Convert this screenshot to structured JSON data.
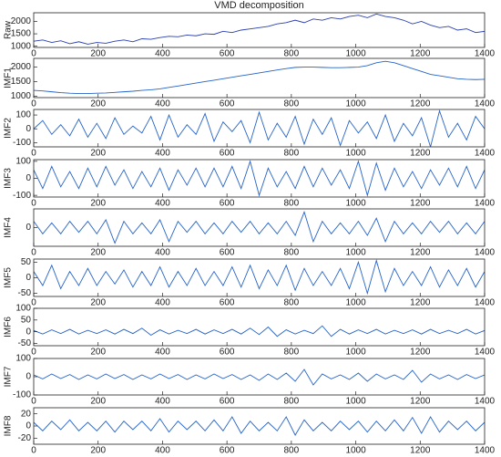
{
  "chart_data": [
    {
      "type": "line",
      "title": "VMD decomposition",
      "ylabel": "Raw",
      "color": "#2a3fb0",
      "x": [
        0,
        28,
        56,
        84,
        112,
        140,
        168,
        196,
        224,
        252,
        280,
        308,
        336,
        364,
        392,
        420,
        448,
        476,
        504,
        532,
        560,
        588,
        616,
        644,
        672,
        700,
        728,
        756,
        784,
        812,
        840,
        868,
        896,
        924,
        952,
        980,
        1008,
        1036,
        1064,
        1092,
        1120,
        1148,
        1176,
        1204,
        1232,
        1260,
        1288,
        1316,
        1344,
        1372,
        1400
      ],
      "values": [
        1200,
        1250,
        1150,
        1220,
        1100,
        1180,
        1080,
        1150,
        1120,
        1200,
        1250,
        1180,
        1300,
        1280,
        1350,
        1400,
        1380,
        1450,
        1420,
        1500,
        1480,
        1600,
        1550,
        1650,
        1700,
        1750,
        1800,
        1900,
        1950,
        2050,
        1950,
        2100,
        2050,
        2150,
        2100,
        2200,
        2250,
        2150,
        2300,
        2200,
        2150,
        2050,
        1900,
        2000,
        1850,
        1750,
        1800,
        1650,
        1700,
        1550,
        1600
      ],
      "xlim": [
        0,
        1400
      ],
      "xticks": [
        0,
        200,
        400,
        600,
        800,
        1000,
        1200,
        1400
      ],
      "ylim": [
        950,
        2350
      ],
      "yticks": [
        1000,
        1500,
        2000
      ]
    },
    {
      "type": "line",
      "ylabel": "IMF1",
      "color": "#2563c9",
      "x": [
        0,
        28,
        56,
        84,
        112,
        140,
        168,
        196,
        224,
        252,
        280,
        308,
        336,
        364,
        392,
        420,
        448,
        476,
        504,
        532,
        560,
        588,
        616,
        644,
        672,
        700,
        728,
        756,
        784,
        812,
        840,
        868,
        896,
        924,
        952,
        980,
        1008,
        1036,
        1064,
        1092,
        1120,
        1148,
        1176,
        1204,
        1232,
        1260,
        1288,
        1316,
        1344,
        1372,
        1400
      ],
      "values": [
        1200,
        1180,
        1150,
        1120,
        1100,
        1090,
        1090,
        1100,
        1110,
        1130,
        1150,
        1170,
        1200,
        1220,
        1250,
        1300,
        1350,
        1400,
        1450,
        1500,
        1550,
        1600,
        1650,
        1700,
        1750,
        1800,
        1850,
        1900,
        1950,
        1990,
        2000,
        2000,
        1990,
        1980,
        1980,
        1990,
        2000,
        2050,
        2150,
        2200,
        2150,
        2050,
        1950,
        1850,
        1750,
        1700,
        1650,
        1600,
        1580,
        1570,
        1580
      ],
      "xlim": [
        0,
        1400
      ],
      "xticks": [
        0,
        200,
        400,
        600,
        800,
        1000,
        1200,
        1400
      ],
      "ylim": [
        950,
        2300
      ],
      "yticks": [
        1000,
        1500,
        2000
      ]
    },
    {
      "type": "line",
      "ylabel": "IMF2",
      "color": "#2563c9",
      "x": [
        0,
        28,
        56,
        84,
        112,
        140,
        168,
        196,
        224,
        252,
        280,
        308,
        336,
        364,
        392,
        420,
        448,
        476,
        504,
        532,
        560,
        588,
        616,
        644,
        672,
        700,
        728,
        756,
        784,
        812,
        840,
        868,
        896,
        924,
        952,
        980,
        1008,
        1036,
        1064,
        1092,
        1120,
        1148,
        1176,
        1204,
        1232,
        1260,
        1288,
        1316,
        1344,
        1372,
        1400
      ],
      "values": [
        0,
        60,
        -40,
        30,
        -50,
        70,
        -60,
        40,
        -70,
        80,
        -40,
        20,
        -30,
        90,
        -80,
        100,
        -60,
        30,
        -40,
        110,
        -90,
        50,
        -20,
        60,
        -100,
        120,
        -80,
        40,
        -60,
        90,
        -110,
        70,
        -40,
        80,
        -120,
        60,
        -30,
        50,
        -70,
        100,
        -90,
        40,
        -50,
        80,
        -130,
        130,
        -60,
        40,
        -80,
        90,
        0
      ],
      "xlim": [
        0,
        1400
      ],
      "xticks": [
        0,
        200,
        400,
        600,
        800,
        1000,
        1200,
        1400
      ],
      "ylim": [
        -130,
        140
      ],
      "yticks": [
        -100,
        0,
        100
      ]
    },
    {
      "type": "line",
      "ylabel": "IMF3",
      "color": "#2563c9",
      "x": [
        0,
        28,
        56,
        84,
        112,
        140,
        168,
        196,
        224,
        252,
        280,
        308,
        336,
        364,
        392,
        420,
        448,
        476,
        504,
        532,
        560,
        588,
        616,
        644,
        672,
        700,
        728,
        756,
        784,
        812,
        840,
        868,
        896,
        924,
        952,
        980,
        1008,
        1036,
        1064,
        1092,
        1120,
        1148,
        1176,
        1204,
        1232,
        1260,
        1288,
        1316,
        1344,
        1372,
        1400
      ],
      "values": [
        50,
        -60,
        70,
        -50,
        40,
        -60,
        60,
        -50,
        70,
        -40,
        50,
        -60,
        40,
        -50,
        60,
        -70,
        50,
        -40,
        60,
        -50,
        60,
        -50,
        70,
        -60,
        100,
        -100,
        60,
        -50,
        40,
        -60,
        70,
        -50,
        60,
        -40,
        50,
        -60,
        100,
        -100,
        90,
        -70,
        60,
        -50,
        40,
        -60,
        50,
        -40,
        60,
        -50,
        70,
        -60,
        50
      ],
      "xlim": [
        0,
        1400
      ],
      "xticks": [
        0,
        200,
        400,
        600,
        800,
        1000,
        1200,
        1400
      ],
      "ylim": [
        -110,
        110
      ],
      "yticks": [
        -100,
        0,
        100
      ]
    },
    {
      "type": "line",
      "ylabel": "IMF4",
      "color": "#2563c9",
      "x": [
        0,
        28,
        56,
        84,
        112,
        140,
        168,
        196,
        224,
        252,
        280,
        308,
        336,
        364,
        392,
        420,
        448,
        476,
        504,
        532,
        560,
        588,
        616,
        644,
        672,
        700,
        728,
        756,
        784,
        812,
        840,
        868,
        896,
        924,
        952,
        980,
        1008,
        1036,
        1064,
        1092,
        1120,
        1148,
        1176,
        1204,
        1232,
        1260,
        1288,
        1316,
        1344,
        1372,
        1400
      ],
      "values": [
        20,
        -20,
        15,
        -20,
        20,
        -15,
        20,
        -20,
        25,
        -50,
        20,
        -20,
        15,
        -20,
        25,
        -45,
        20,
        -15,
        20,
        -20,
        15,
        -20,
        20,
        -15,
        20,
        -20,
        15,
        -20,
        20,
        -25,
        50,
        -45,
        20,
        -20,
        15,
        -20,
        20,
        -25,
        30,
        -45,
        20,
        -20,
        15,
        -20,
        20,
        -15,
        20,
        -20,
        15,
        -20,
        20
      ],
      "xlim": [
        0,
        1400
      ],
      "xticks": [
        0,
        200,
        400,
        600,
        800,
        1000,
        1200,
        1400
      ],
      "ylim": [
        -60,
        60
      ],
      "yticks": [
        0
      ]
    },
    {
      "type": "line",
      "ylabel": "IMF5",
      "color": "#2563c9",
      "x": [
        0,
        28,
        56,
        84,
        112,
        140,
        168,
        196,
        224,
        252,
        280,
        308,
        336,
        364,
        392,
        420,
        448,
        476,
        504,
        532,
        560,
        588,
        616,
        644,
        672,
        700,
        728,
        756,
        784,
        812,
        840,
        868,
        896,
        924,
        952,
        980,
        1008,
        1036,
        1064,
        1092,
        1120,
        1148,
        1176,
        1204,
        1232,
        1260,
        1288,
        1316,
        1344,
        1372,
        1400
      ],
      "values": [
        20,
        -25,
        40,
        -35,
        20,
        -25,
        30,
        -25,
        20,
        -20,
        25,
        -30,
        20,
        -25,
        35,
        -30,
        20,
        -25,
        30,
        -25,
        20,
        -25,
        35,
        -30,
        40,
        -35,
        25,
        -25,
        40,
        -40,
        30,
        -25,
        20,
        -25,
        30,
        -35,
        50,
        -50,
        55,
        -45,
        30,
        -25,
        20,
        -25,
        35,
        -30,
        25,
        -25,
        30,
        -30,
        20
      ],
      "xlim": [
        0,
        1400
      ],
      "xticks": [
        0,
        200,
        400,
        600,
        800,
        1000,
        1200,
        1400
      ],
      "ylim": [
        -60,
        60
      ],
      "yticks": [
        -50,
        0,
        50
      ]
    },
    {
      "type": "line",
      "ylabel": "IMF6",
      "color": "#2563c9",
      "x": [
        0,
        28,
        56,
        84,
        112,
        140,
        168,
        196,
        224,
        252,
        280,
        308,
        336,
        364,
        392,
        420,
        448,
        476,
        504,
        532,
        560,
        588,
        616,
        644,
        672,
        700,
        728,
        756,
        784,
        812,
        840,
        868,
        896,
        924,
        952,
        980,
        1008,
        1036,
        1064,
        1092,
        1120,
        1148,
        1176,
        1204,
        1232,
        1260,
        1288,
        1316,
        1344,
        1372,
        1400
      ],
      "values": [
        5,
        -10,
        8,
        -8,
        10,
        -10,
        6,
        -8,
        8,
        -10,
        10,
        -8,
        15,
        -15,
        8,
        -10,
        6,
        -8,
        10,
        -10,
        8,
        -8,
        10,
        -10,
        15,
        -12,
        20,
        -20,
        8,
        -10,
        6,
        -8,
        25,
        -20,
        10,
        -10,
        8,
        -8,
        10,
        -10,
        6,
        -8,
        8,
        -10,
        10,
        -8,
        6,
        -8,
        10,
        -10,
        5
      ],
      "xlim": [
        0,
        1400
      ],
      "xticks": [
        0,
        200,
        400,
        600,
        800,
        1000,
        1200,
        1400
      ],
      "ylim": [
        -60,
        100
      ],
      "yticks": [
        -50,
        0,
        50,
        100
      ]
    },
    {
      "type": "line",
      "ylabel": "IMF7",
      "color": "#2563c9",
      "x": [
        0,
        28,
        56,
        84,
        112,
        140,
        168,
        196,
        224,
        252,
        280,
        308,
        336,
        364,
        392,
        420,
        448,
        476,
        504,
        532,
        560,
        588,
        616,
        644,
        672,
        700,
        728,
        756,
        784,
        812,
        840,
        868,
        896,
        924,
        952,
        980,
        1008,
        1036,
        1064,
        1092,
        1120,
        1148,
        1176,
        1204,
        1232,
        1260,
        1288,
        1316,
        1344,
        1372,
        1400
      ],
      "values": [
        10,
        -12,
        15,
        -10,
        12,
        -15,
        10,
        -12,
        15,
        -10,
        12,
        -15,
        10,
        -12,
        15,
        -10,
        12,
        -15,
        10,
        -12,
        15,
        -10,
        12,
        -15,
        10,
        -20,
        15,
        -15,
        20,
        -25,
        40,
        -45,
        15,
        -12,
        10,
        -15,
        20,
        -25,
        15,
        -12,
        10,
        -15,
        35,
        -30,
        15,
        -12,
        10,
        -15,
        12,
        -10,
        10
      ],
      "xlim": [
        0,
        1400
      ],
      "xticks": [
        0,
        200,
        400,
        600,
        800,
        1000,
        1200,
        1400
      ],
      "ylim": [
        -100,
        100
      ],
      "yticks": [
        -100,
        0,
        100
      ]
    },
    {
      "type": "line",
      "ylabel": "IMF8",
      "color": "#2563c9",
      "x": [
        0,
        28,
        56,
        84,
        112,
        140,
        168,
        196,
        224,
        252,
        280,
        308,
        336,
        364,
        392,
        420,
        448,
        476,
        504,
        532,
        560,
        588,
        616,
        644,
        672,
        700,
        728,
        756,
        784,
        812,
        840,
        868,
        896,
        924,
        952,
        980,
        1008,
        1036,
        1064,
        1092,
        1120,
        1148,
        1176,
        1204,
        1232,
        1260,
        1288,
        1316,
        1344,
        1372,
        1400
      ],
      "values": [
        6,
        -8,
        8,
        -6,
        10,
        -8,
        6,
        -8,
        8,
        -10,
        8,
        -6,
        8,
        -8,
        12,
        -10,
        8,
        -6,
        8,
        -8,
        10,
        -8,
        15,
        -12,
        8,
        -8,
        6,
        -8,
        15,
        -15,
        10,
        -8,
        6,
        -8,
        8,
        -6,
        8,
        -10,
        8,
        -8,
        10,
        -8,
        14,
        -12,
        15,
        -10,
        8,
        -6,
        8,
        -8,
        6
      ],
      "xlim": [
        0,
        1400
      ],
      "xticks": [
        0,
        200,
        400,
        600,
        800,
        1000,
        1200,
        1400
      ],
      "ylim": [
        -30,
        30
      ],
      "yticks": [
        -20,
        0,
        20
      ]
    }
  ]
}
